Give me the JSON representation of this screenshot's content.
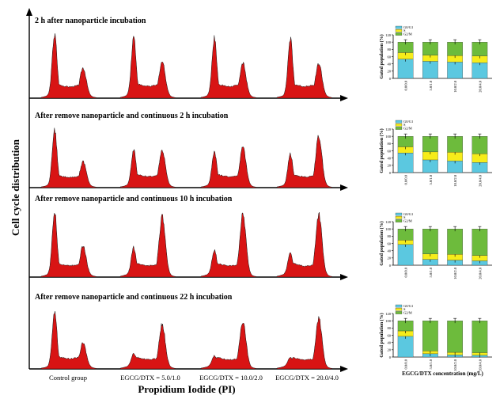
{
  "left_panel": {
    "y_axis_label": "Cell cycle distribution",
    "x_axis_label": "Propidium Iodide (PI)",
    "group_labels": [
      "Control group",
      "EGCG/DTX = 5.0/1.0",
      "EGCG/DTX = 10.0/2.0",
      "EGCG/DTX = 20.0/4.0"
    ],
    "row_titles": [
      "2 h after nanoparticle incubation",
      "After remove nanoparticle and continuous 2 h incubation",
      "After remove nanoparticle and continuous 10 h incubation",
      "After remove nanoparticle and continuous 22 h incubation"
    ],
    "fill_color": "#d81414"
  },
  "chart_data": [
    {
      "type": "bar",
      "stacked": true,
      "title": "2 h after nanoparticle incubation",
      "categories": [
        "0.0/0.0",
        "5.0/1.0",
        "10.0/2.0",
        "20.0/4.0"
      ],
      "ylabel": "Gated population (%)",
      "ylim": [
        0,
        120
      ],
      "yticks": [
        0,
        20,
        40,
        60,
        80,
        100,
        120
      ],
      "legend": "top-left",
      "series": [
        {
          "name": "G0/G1",
          "color": "#5bc8e0",
          "values": [
            53,
            47,
            45,
            43
          ]
        },
        {
          "name": "S",
          "color": "#f6ec1a",
          "values": [
            18,
            17,
            18,
            19
          ]
        },
        {
          "name": "G2/M",
          "color": "#6dbb3c",
          "values": [
            29,
            36,
            37,
            38
          ]
        }
      ]
    },
    {
      "type": "bar",
      "stacked": true,
      "title": "After remove nanoparticle and continuous 2 h incubation",
      "categories": [
        "0.0/0.0",
        "5.0/1.0",
        "10.0/2.0",
        "20.0/4.0"
      ],
      "ylabel": "Gated population (%)",
      "ylim": [
        0,
        120
      ],
      "yticks": [
        0,
        20,
        40,
        60,
        80,
        100,
        120
      ],
      "legend": "top-left",
      "series": [
        {
          "name": "G0/G1",
          "color": "#5bc8e0",
          "values": [
            54,
            35,
            32,
            28
          ]
        },
        {
          "name": "S",
          "color": "#f6ec1a",
          "values": [
            17,
            22,
            24,
            24
          ]
        },
        {
          "name": "G2/M",
          "color": "#6dbb3c",
          "values": [
            29,
            43,
            44,
            48
          ]
        }
      ]
    },
    {
      "type": "bar",
      "stacked": true,
      "title": "After remove nanoparticle and continuous 10 h incubation",
      "categories": [
        "0.0/0.0",
        "5.0/1.0",
        "10.0/2.0",
        "20.0/4.0"
      ],
      "ylabel": "Gated population (%)",
      "ylim": [
        0,
        120
      ],
      "yticks": [
        0,
        20,
        40,
        60,
        80,
        100,
        120
      ],
      "legend": "top-left",
      "series": [
        {
          "name": "G0/G1",
          "color": "#5bc8e0",
          "values": [
            57,
            16,
            14,
            12
          ]
        },
        {
          "name": "S",
          "color": "#f6ec1a",
          "values": [
            12,
            15,
            16,
            15
          ]
        },
        {
          "name": "G2/M",
          "color": "#6dbb3c",
          "values": [
            31,
            69,
            70,
            73
          ]
        }
      ]
    },
    {
      "type": "bar",
      "stacked": true,
      "title": "After remove nanoparticle and continuous 22 h incubation",
      "categories": [
        "0.0/0.0",
        "5.0/1.0",
        "10.0/2.0",
        "20.0/4.0"
      ],
      "ylabel": "Gated population (%)",
      "xlabel": "EGCG/DTX concentration (mg/L)",
      "ylim": [
        0,
        120
      ],
      "yticks": [
        0,
        20,
        40,
        60,
        80,
        100,
        120
      ],
      "legend": "top-left",
      "series": [
        {
          "name": "G0/G1",
          "color": "#5bc8e0",
          "values": [
            57,
            9,
            6,
            5
          ]
        },
        {
          "name": "S",
          "color": "#f6ec1a",
          "values": [
            15,
            8,
            7,
            7
          ]
        },
        {
          "name": "G2/M",
          "color": "#6dbb3c",
          "values": [
            28,
            83,
            87,
            88
          ]
        }
      ]
    }
  ]
}
